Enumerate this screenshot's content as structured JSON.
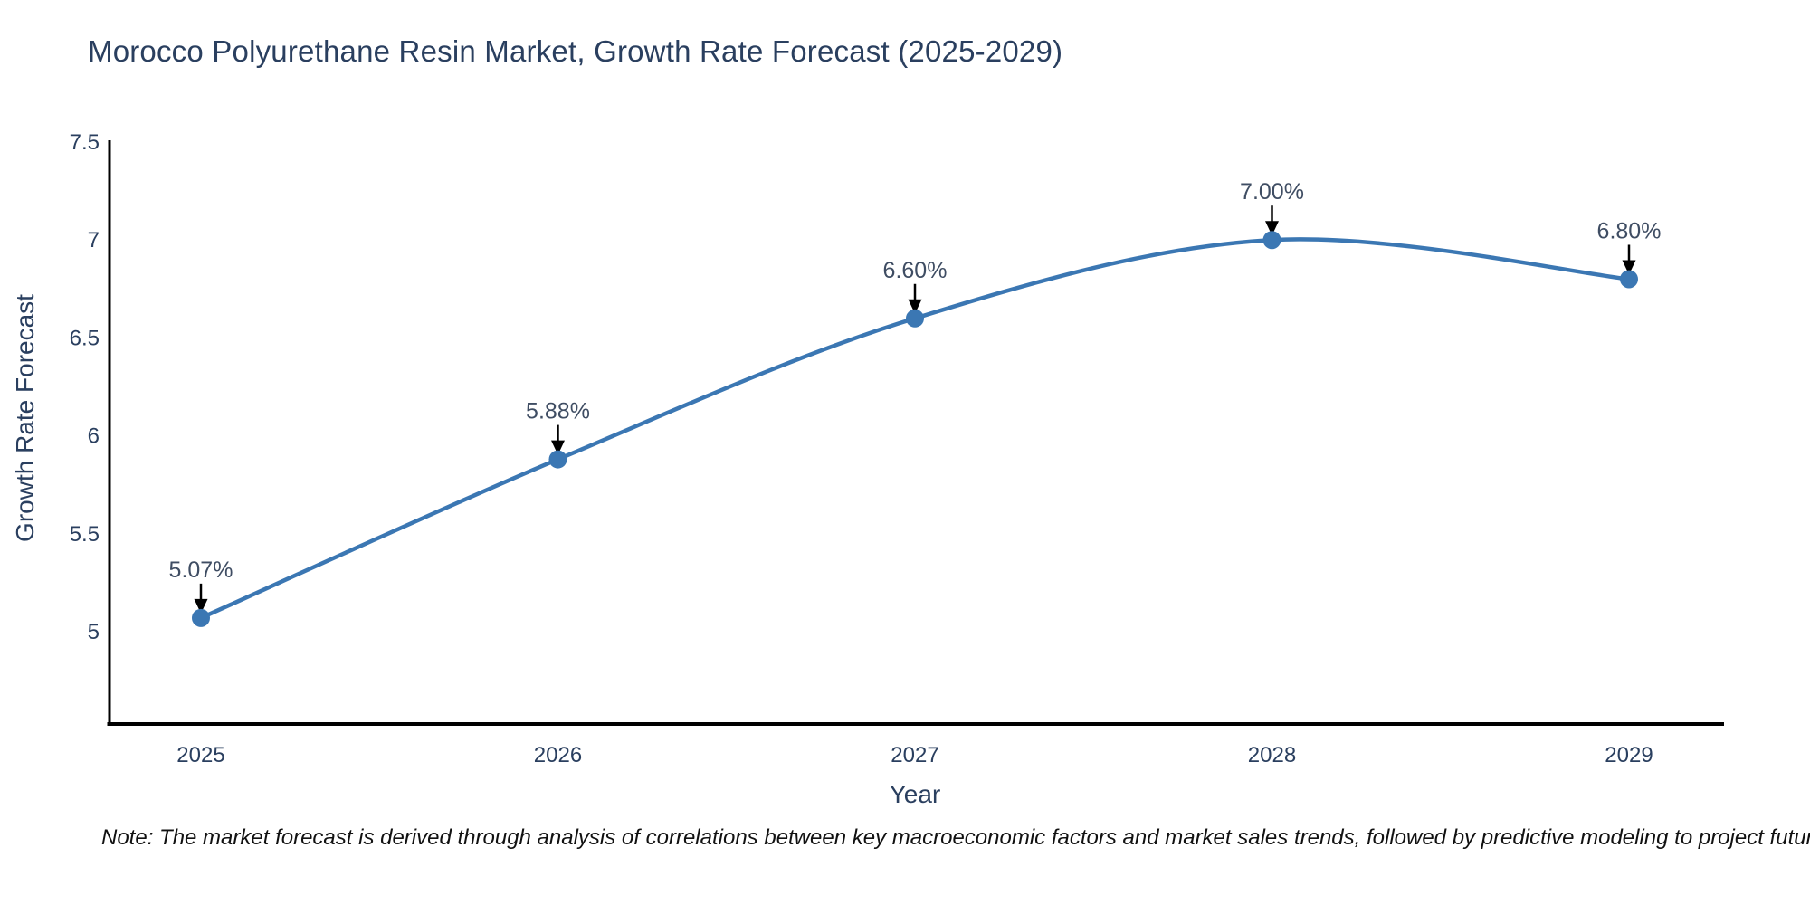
{
  "title": {
    "text": "Morocco Polyurethane Resin Market, Growth Rate Forecast (2025-2029)",
    "color": "#2a3f5f"
  },
  "note": {
    "text": "Note: The market forecast is derived through analysis of correlations between key macroeconomic factors and market sales trends, followed by predictive modeling to project future sales"
  },
  "chart_data": {
    "type": "line",
    "title": "Morocco Polyurethane Resin Market, Growth Rate Forecast (2025-2029)",
    "x": [
      "2025",
      "2026",
      "2027",
      "2028",
      "2029"
    ],
    "values": [
      5.07,
      5.88,
      6.6,
      7.0,
      6.8
    ],
    "point_labels": [
      "5.07%",
      "5.88%",
      "6.60%",
      "7.00%",
      "6.80%"
    ],
    "xlabel": "Year",
    "ylabel": "Growth Rate Forecast",
    "ytick_labels": [
      "7.5",
      "7",
      "6.5",
      "6",
      "5.5",
      "5"
    ],
    "ytick_values": [
      7.5,
      7.0,
      6.5,
      6.0,
      5.5,
      5.0
    ],
    "ylim": [
      4.53,
      7.5
    ],
    "xlim": [
      2024.73,
      2029.27
    ],
    "line_shape": "spline",
    "grid": false,
    "legend_position": "none",
    "annotation_arrows": true,
    "colors": {
      "line": "#3b77b3",
      "marker": "#3b77b3",
      "axis": "#000000",
      "tick_text": "#2a3f5f",
      "annotation_text": "#3f4d63",
      "annotation_arrow": "#000000",
      "background": "#ffffff"
    }
  }
}
